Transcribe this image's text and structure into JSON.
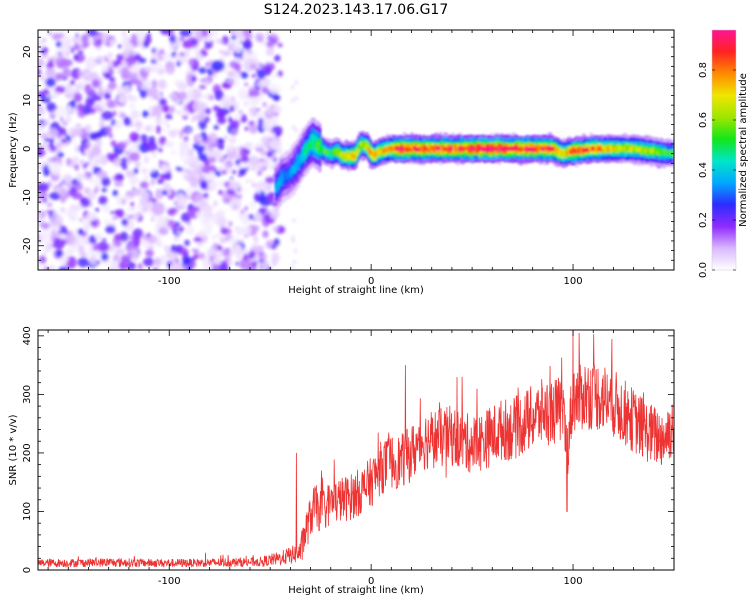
{
  "title": "S124.2023.143.17.06.G17",
  "chart_data": [
    {
      "type": "heatmap",
      "xlabel": "Height of straight line (km)",
      "ylabel": "Frequency (Hz)",
      "xlim": [
        -165,
        150
      ],
      "ylim": [
        -25,
        24.5
      ],
      "x_ticks": [
        -100,
        0,
        100
      ],
      "y_ticks": [
        -20,
        -10,
        0,
        10,
        20
      ],
      "grid": false,
      "colorbar": {
        "label": "Normalized spectral amplitude",
        "ticks": [
          0.0,
          0.2,
          0.4,
          0.6,
          0.8
        ],
        "range": [
          0.0,
          0.96
        ],
        "colors": [
          "#ffffff",
          "#d9b8ff",
          "#8f2bff",
          "#2c2cff",
          "#00a8ff",
          "#00e6c8",
          "#13e61a",
          "#9ee600",
          "#f0e600",
          "#ff8a00",
          "#ff2222",
          "#ff1493"
        ]
      },
      "noise_region_x": [
        -165,
        -47
      ],
      "ridge": {
        "x": [
          -47,
          -44,
          -41,
          -38,
          -35,
          -32,
          -29,
          -26,
          -23,
          -20,
          -17,
          -14,
          -11,
          -8,
          -5,
          -2,
          1,
          5,
          10,
          15,
          20,
          30,
          40,
          50,
          60,
          70,
          80,
          90,
          95,
          100,
          110,
          120,
          130,
          140,
          150
        ],
        "y": [
          -8,
          -6,
          -5.5,
          -4,
          -2,
          0,
          1.5,
          0.5,
          -0.5,
          -1,
          -0.5,
          -1.5,
          -1.5,
          -1.5,
          1,
          0.5,
          -1.5,
          -0.5,
          0,
          0,
          0,
          0,
          0,
          0,
          0,
          0,
          0,
          0,
          -1,
          -0.5,
          0,
          0,
          0,
          -0.5,
          -1
        ],
        "amplitude": [
          0.35,
          0.35,
          0.3,
          0.35,
          0.4,
          0.45,
          0.5,
          0.55,
          0.55,
          0.5,
          0.6,
          0.65,
          0.75,
          0.8,
          0.6,
          0.7,
          0.75,
          0.7,
          0.75,
          0.9,
          0.85,
          0.85,
          0.85,
          0.9,
          0.95,
          0.9,
          0.9,
          0.85,
          0.7,
          0.85,
          0.8,
          0.7,
          0.65,
          0.6,
          0.5
        ]
      }
    },
    {
      "type": "line",
      "xlabel": "Height of straight line (km)",
      "ylabel": "SNR (10 * v/v)",
      "xlim": [
        -165,
        150
      ],
      "ylim": [
        0,
        410
      ],
      "x_ticks": [
        -100,
        0,
        100
      ],
      "y_ticks": [
        0,
        100,
        200,
        300,
        400
      ],
      "grid": false,
      "series": [
        {
          "color": "#ee3333",
          "x": [
            -165,
            -150,
            -130,
            -110,
            -90,
            -70,
            -55,
            -45,
            -35,
            -33,
            -30,
            -28,
            -25,
            -20,
            -15,
            -10,
            -5,
            0,
            5,
            10,
            15,
            20,
            25,
            30,
            35,
            40,
            45,
            50,
            55,
            60,
            65,
            70,
            75,
            80,
            85,
            90,
            95,
            97,
            100,
            102,
            105,
            110,
            115,
            120,
            125,
            130,
            135,
            140,
            145,
            150
          ],
          "y": [
            12,
            12,
            13,
            12,
            12,
            13,
            14,
            20,
            30,
            60,
            90,
            110,
            100,
            115,
            120,
            125,
            135,
            150,
            175,
            185,
            185,
            200,
            220,
            225,
            225,
            230,
            220,
            215,
            220,
            230,
            240,
            240,
            250,
            260,
            270,
            270,
            275,
            200,
            300,
            290,
            300,
            300,
            295,
            285,
            270,
            255,
            240,
            230,
            225,
            250
          ],
          "spikes": [
            {
              "x": -37,
              "y": 200
            },
            {
              "x": 17,
              "y": 350
            },
            {
              "x": 45,
              "y": 330
            },
            {
              "x": 97,
              "y": 100
            },
            {
              "x": 100,
              "y": 410
            },
            {
              "x": 103,
              "y": 405
            }
          ],
          "noise_amplitude": 25
        }
      ]
    }
  ]
}
